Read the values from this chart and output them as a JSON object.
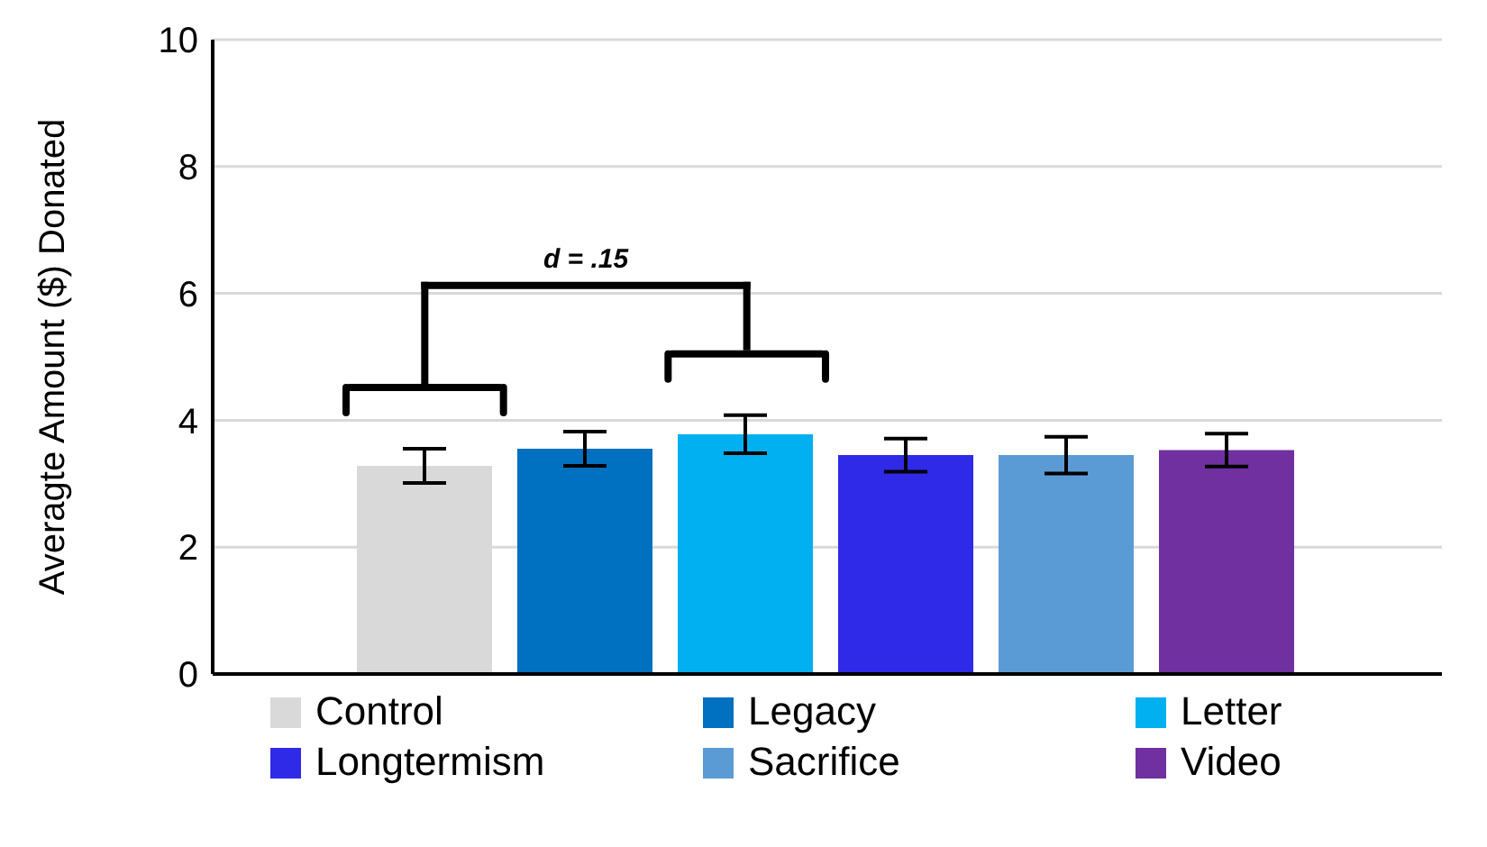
{
  "chart_data": {
    "type": "bar",
    "ylabel": "Averagte Amount ($) Donated",
    "categories": [
      null
    ],
    "series": [
      {
        "name": "Control",
        "color": "#d9d9d9",
        "values": [
          3.28
        ],
        "errors": [
          0.27
        ]
      },
      {
        "name": "Legacy",
        "color": "#0070c0",
        "values": [
          3.55
        ],
        "errors": [
          0.27
        ]
      },
      {
        "name": "Letter",
        "color": "#00b0f0",
        "values": [
          3.78
        ],
        "errors": [
          0.3
        ]
      },
      {
        "name": "Longtermism",
        "color": "#2f2ae8",
        "values": [
          3.45
        ],
        "errors": [
          0.26
        ]
      },
      {
        "name": "Sacrifice",
        "color": "#5b9bd5",
        "values": [
          3.45
        ],
        "errors": [
          0.29
        ]
      },
      {
        "name": "Video",
        "color": "#7030a0",
        "values": [
          3.53
        ],
        "errors": [
          0.26
        ]
      }
    ],
    "ylim": [
      0,
      10
    ],
    "yticks": [
      0,
      2,
      4,
      6,
      8,
      10
    ],
    "grid": "y",
    "legend": "bottom",
    "annotations": [
      "d = .15"
    ]
  }
}
